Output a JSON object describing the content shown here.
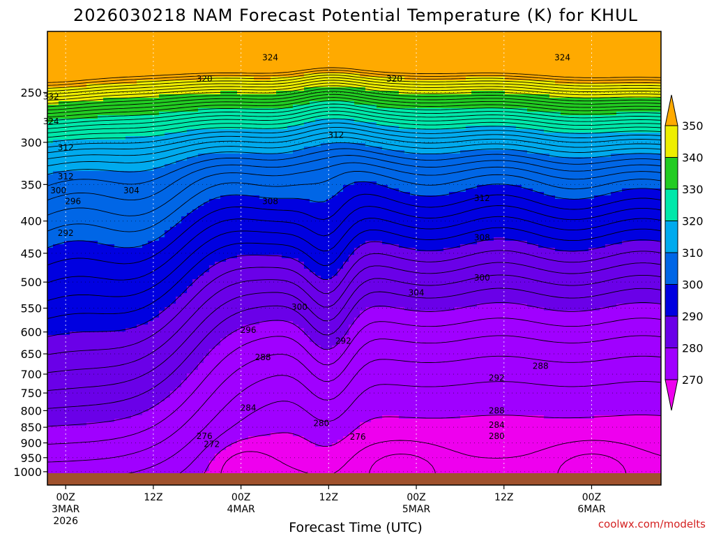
{
  "chart_data": {
    "type": "heatmap",
    "title": "2026030218 NAM Forecast Potential Temperature (K) for KHUL",
    "xlabel": "Forecast Time (UTC)",
    "ylabel": "",
    "credit": "coolwx.com/modelts",
    "x_range_hours": [
      -8.5,
      75.5
    ],
    "y_axis": {
      "scale": "log-pressure",
      "range_hPa": [
        1050,
        200
      ],
      "ticks": [
        "250",
        "300",
        "350",
        "400",
        "450",
        "500",
        "550",
        "600",
        "650",
        "700",
        "750",
        "800",
        "850",
        "900",
        "950",
        "1000"
      ]
    },
    "x_ticks": [
      {
        "hour": -6,
        "lines": [
          "00Z",
          "3MAR",
          "2026"
        ]
      },
      {
        "hour": 6,
        "lines": [
          "12Z"
        ]
      },
      {
        "hour": 18,
        "lines": [
          "00Z",
          "4MAR"
        ]
      },
      {
        "hour": 30,
        "lines": [
          "12Z"
        ]
      },
      {
        "hour": 42,
        "lines": [
          "00Z",
          "5MAR"
        ]
      },
      {
        "hour": 54,
        "lines": [
          "12Z"
        ]
      },
      {
        "hour": 66,
        "lines": [
          "00Z",
          "6MAR"
        ]
      }
    ],
    "colorbar": {
      "levels": [
        "270",
        "280",
        "290",
        "300",
        "310",
        "320",
        "330",
        "340",
        "350"
      ],
      "colors": [
        "#ee00ee",
        "#a000ff",
        "#6a00e8",
        "#0000e0",
        "#0066e6",
        "#00aaee",
        "#00e8aa",
        "#22cc22",
        "#eeee00",
        "#ffaa00"
      ]
    },
    "contour_interval_K": 2,
    "contour_labels": [
      "324",
      "324",
      "320",
      "320",
      "332",
      "324",
      "312",
      "312",
      "312",
      "304",
      "300",
      "296",
      "292",
      "308",
      "312",
      "308",
      "304",
      "300",
      "300",
      "296",
      "292",
      "288",
      "288",
      "292",
      "284",
      "288",
      "280",
      "284",
      "276",
      "280",
      "276",
      "272"
    ]
  }
}
